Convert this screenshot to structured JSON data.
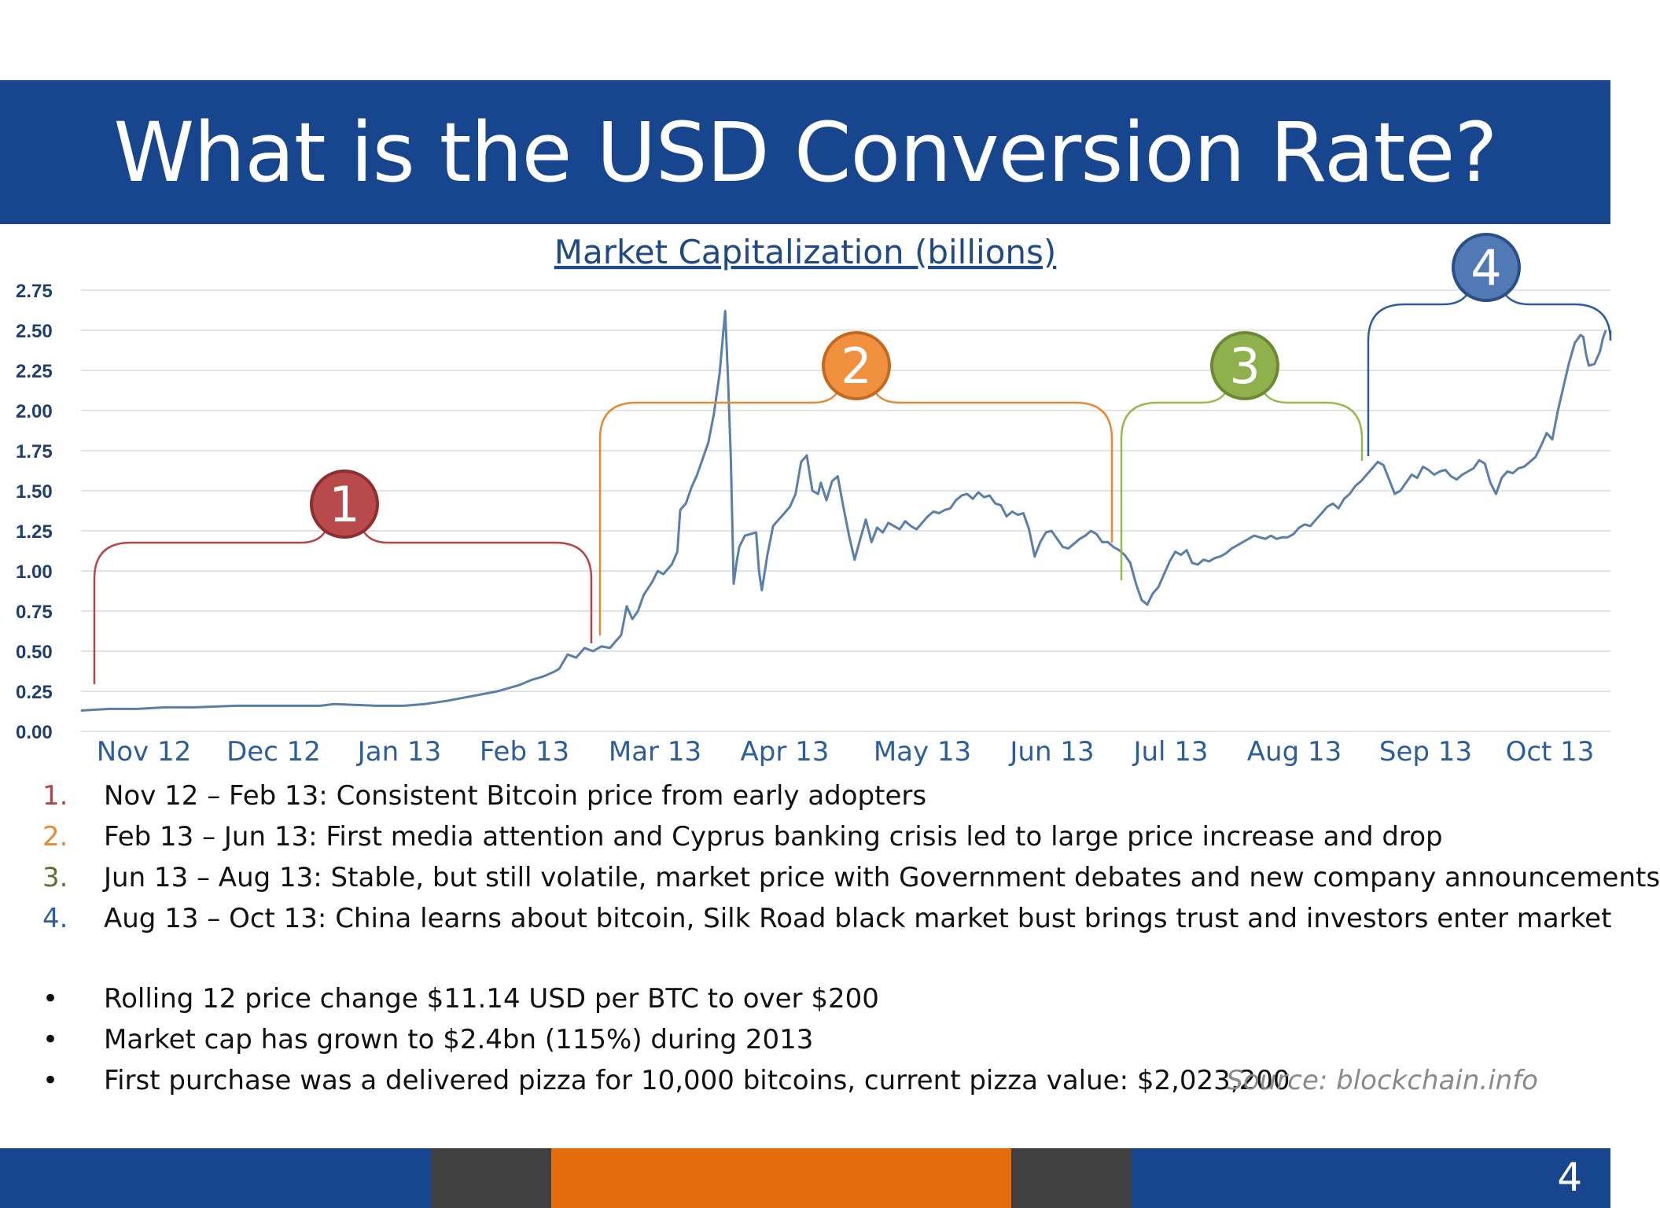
{
  "slide": {
    "title": "What is the USD Conversion Rate?",
    "page_number": "4"
  },
  "chart_data": {
    "type": "line",
    "title": "Market Capitalization (billions)",
    "ylim": [
      0,
      2.75
    ],
    "y_ticks": [
      "0.00",
      "0.25",
      "0.50",
      "0.75",
      "1.00",
      "1.25",
      "1.50",
      "1.75",
      "2.00",
      "2.25",
      "2.50",
      "2.75"
    ],
    "x_tick_labels": [
      "Nov 12",
      "Dec 12",
      "Jan 13",
      "Feb 13",
      "Mar 13",
      "Apr 13",
      "May 13",
      "Jun 13",
      "Jul 13",
      "Aug 13",
      "Sep  13",
      "Oct 13"
    ],
    "grid": true,
    "line_color": "#5a7fa8",
    "series": [
      {
        "points": [
          [
            0,
            0.13
          ],
          [
            10,
            0.14
          ],
          [
            20,
            0.14
          ],
          [
            30,
            0.15
          ],
          [
            40,
            0.15
          ],
          [
            55,
            0.16
          ],
          [
            70,
            0.16
          ],
          [
            85,
            0.16
          ],
          [
            90,
            0.17
          ],
          [
            105,
            0.16
          ],
          [
            115,
            0.16
          ],
          [
            122,
            0.17
          ],
          [
            130,
            0.19
          ],
          [
            136,
            0.21
          ],
          [
            142,
            0.23
          ],
          [
            148,
            0.25
          ],
          [
            152,
            0.27
          ],
          [
            156,
            0.29
          ],
          [
            160,
            0.32
          ],
          [
            164,
            0.34
          ],
          [
            168,
            0.37
          ],
          [
            170,
            0.39
          ],
          [
            173,
            0.48
          ],
          [
            176,
            0.46
          ],
          [
            179,
            0.52
          ],
          [
            182,
            0.5
          ],
          [
            185,
            0.53
          ],
          [
            188,
            0.52
          ],
          [
            190,
            0.56
          ],
          [
            192,
            0.6
          ],
          [
            194,
            0.78
          ],
          [
            196,
            0.7
          ],
          [
            198,
            0.75
          ],
          [
            200,
            0.85
          ],
          [
            203,
            0.93
          ],
          [
            205,
            1.0
          ],
          [
            207,
            0.98
          ],
          [
            210,
            1.04
          ],
          [
            212,
            1.12
          ],
          [
            213,
            1.38
          ],
          [
            215,
            1.42
          ],
          [
            217,
            1.52
          ],
          [
            219,
            1.6
          ],
          [
            221,
            1.7
          ],
          [
            223,
            1.8
          ],
          [
            225,
            1.98
          ],
          [
            227,
            2.23
          ],
          [
            229,
            2.62
          ],
          [
            230,
            2.2
          ],
          [
            231,
            1.7
          ],
          [
            232,
            0.92
          ],
          [
            233,
            1.05
          ],
          [
            234,
            1.15
          ],
          [
            236,
            1.22
          ],
          [
            238,
            1.23
          ],
          [
            240,
            1.24
          ],
          [
            241,
            1.0
          ],
          [
            242,
            0.88
          ],
          [
            244,
            1.1
          ],
          [
            246,
            1.28
          ],
          [
            248,
            1.32
          ],
          [
            250,
            1.36
          ],
          [
            252,
            1.4
          ],
          [
            254,
            1.48
          ],
          [
            256,
            1.68
          ],
          [
            258,
            1.72
          ],
          [
            260,
            1.5
          ],
          [
            262,
            1.48
          ],
          [
            263,
            1.55
          ],
          [
            265,
            1.44
          ],
          [
            267,
            1.56
          ],
          [
            269,
            1.59
          ],
          [
            271,
            1.4
          ],
          [
            273,
            1.22
          ],
          [
            275,
            1.07
          ],
          [
            277,
            1.2
          ],
          [
            279,
            1.32
          ],
          [
            281,
            1.18
          ],
          [
            283,
            1.27
          ],
          [
            285,
            1.24
          ],
          [
            287,
            1.3
          ],
          [
            289,
            1.28
          ],
          [
            291,
            1.26
          ],
          [
            293,
            1.31
          ],
          [
            295,
            1.28
          ],
          [
            297,
            1.26
          ],
          [
            299,
            1.3
          ],
          [
            301,
            1.34
          ],
          [
            303,
            1.37
          ],
          [
            305,
            1.36
          ],
          [
            307,
            1.38
          ],
          [
            309,
            1.39
          ],
          [
            311,
            1.44
          ],
          [
            313,
            1.47
          ],
          [
            315,
            1.48
          ],
          [
            317,
            1.45
          ],
          [
            319,
            1.49
          ],
          [
            321,
            1.46
          ],
          [
            323,
            1.47
          ],
          [
            325,
            1.42
          ],
          [
            327,
            1.41
          ],
          [
            329,
            1.34
          ],
          [
            331,
            1.37
          ],
          [
            333,
            1.35
          ],
          [
            335,
            1.36
          ],
          [
            337,
            1.26
          ],
          [
            339,
            1.09
          ],
          [
            341,
            1.18
          ],
          [
            343,
            1.24
          ],
          [
            345,
            1.25
          ],
          [
            347,
            1.2
          ],
          [
            349,
            1.15
          ],
          [
            351,
            1.14
          ],
          [
            353,
            1.17
          ],
          [
            355,
            1.2
          ],
          [
            357,
            1.22
          ],
          [
            359,
            1.25
          ],
          [
            361,
            1.23
          ],
          [
            363,
            1.18
          ],
          [
            365,
            1.18
          ],
          [
            367,
            1.15
          ],
          [
            369,
            1.13
          ],
          [
            371,
            1.1
          ],
          [
            373,
            1.05
          ],
          [
            375,
            0.92
          ],
          [
            377,
            0.82
          ],
          [
            379,
            0.79
          ],
          [
            381,
            0.86
          ],
          [
            383,
            0.9
          ],
          [
            385,
            0.98
          ],
          [
            387,
            1.06
          ],
          [
            389,
            1.12
          ],
          [
            391,
            1.1
          ],
          [
            393,
            1.13
          ],
          [
            395,
            1.05
          ],
          [
            397,
            1.04
          ],
          [
            399,
            1.07
          ],
          [
            401,
            1.06
          ],
          [
            403,
            1.08
          ],
          [
            405,
            1.09
          ],
          [
            407,
            1.11
          ],
          [
            409,
            1.14
          ],
          [
            411,
            1.16
          ],
          [
            413,
            1.18
          ],
          [
            415,
            1.2
          ],
          [
            417,
            1.22
          ],
          [
            419,
            1.21
          ],
          [
            421,
            1.2
          ],
          [
            423,
            1.22
          ],
          [
            425,
            1.2
          ],
          [
            427,
            1.21
          ],
          [
            429,
            1.21
          ],
          [
            431,
            1.23
          ],
          [
            433,
            1.27
          ],
          [
            435,
            1.29
          ],
          [
            437,
            1.28
          ],
          [
            439,
            1.32
          ],
          [
            441,
            1.36
          ],
          [
            443,
            1.4
          ],
          [
            445,
            1.42
          ],
          [
            447,
            1.39
          ],
          [
            449,
            1.45
          ],
          [
            451,
            1.48
          ],
          [
            453,
            1.53
          ],
          [
            455,
            1.56
          ],
          [
            457,
            1.6
          ],
          [
            459,
            1.64
          ],
          [
            461,
            1.68
          ],
          [
            463,
            1.66
          ],
          [
            465,
            1.57
          ],
          [
            467,
            1.48
          ],
          [
            469,
            1.5
          ],
          [
            471,
            1.55
          ],
          [
            473,
            1.6
          ],
          [
            475,
            1.58
          ],
          [
            477,
            1.65
          ],
          [
            479,
            1.63
          ],
          [
            481,
            1.6
          ],
          [
            483,
            1.62
          ],
          [
            485,
            1.63
          ],
          [
            487,
            1.59
          ],
          [
            489,
            1.57
          ],
          [
            491,
            1.6
          ],
          [
            493,
            1.62
          ],
          [
            495,
            1.64
          ],
          [
            497,
            1.69
          ],
          [
            499,
            1.67
          ],
          [
            501,
            1.55
          ],
          [
            503,
            1.48
          ],
          [
            505,
            1.58
          ],
          [
            507,
            1.62
          ],
          [
            509,
            1.61
          ],
          [
            511,
            1.64
          ],
          [
            513,
            1.65
          ],
          [
            515,
            1.68
          ],
          [
            517,
            1.71
          ],
          [
            519,
            1.78
          ],
          [
            521,
            1.86
          ],
          [
            523,
            1.82
          ],
          [
            525,
            2.0
          ],
          [
            527,
            2.15
          ],
          [
            529,
            2.3
          ],
          [
            531,
            2.42
          ],
          [
            533,
            2.47
          ],
          [
            534,
            2.46
          ],
          [
            535,
            2.35
          ],
          [
            536,
            2.28
          ],
          [
            538,
            2.29
          ],
          [
            540,
            2.37
          ],
          [
            541,
            2.45
          ],
          [
            542,
            2.5
          ]
        ]
      }
    ],
    "callouts": [
      {
        "label": "1",
        "color": "#b44648",
        "fill": "#b84a4c",
        "ring": "#8d2f31"
      },
      {
        "label": "2",
        "color": "#e48a34",
        "fill": "#f0903f",
        "ring": "#c46a1e"
      },
      {
        "label": "3",
        "color": "#98b94c",
        "fill": "#8fb04c",
        "ring": "#6c8a34"
      },
      {
        "label": "4",
        "color": "#2d5e9c",
        "fill": "#5179b4",
        "ring": "#2a4f86"
      }
    ]
  },
  "periods": [
    {
      "num": "1.",
      "text": "Nov 12 – Feb 13: Consistent Bitcoin price from early adopters",
      "color": "#b44648"
    },
    {
      "num": "2.",
      "text": "Feb 13 – Jun 13: First media attention and Cyprus banking crisis led to large price increase and drop",
      "color": "#e48a34"
    },
    {
      "num": "3.",
      "text": "Jun 13 – Aug 13: Stable, but still volatile, market price with Government debates and new company announcements",
      "color": "#5e7231"
    },
    {
      "num": "4.",
      "text": "Aug 13 – Oct 13: China learns about bitcoin, Silk Road black market bust brings trust and investors enter market",
      "color": "#2d5e9c"
    }
  ],
  "bullets": [
    {
      "mark": "•",
      "text": "Rolling 12 price change  $11.14 USD per BTC to over $200"
    },
    {
      "mark": "•",
      "text": "Market cap has grown to $2.4bn (115%) during 2013"
    },
    {
      "mark": "•",
      "text": "First purchase was a delivered pizza for 10,000 bitcoins, current pizza value:  $2,023,200"
    }
  ],
  "source": "Source: blockchain.info",
  "footer_colors": [
    "#17468f",
    "#404040",
    "#e46c0a",
    "#404040",
    "#17468f"
  ]
}
